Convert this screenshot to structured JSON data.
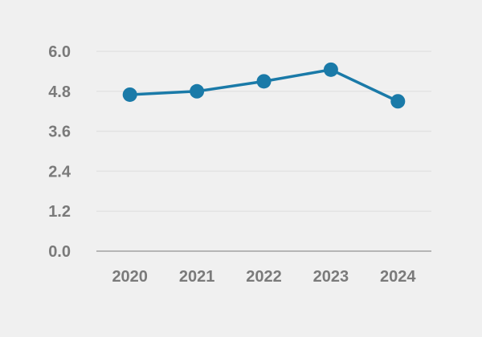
{
  "chart_data": {
    "type": "line",
    "title": "",
    "xlabel": "",
    "ylabel": "",
    "categories": [
      "2020",
      "2021",
      "2022",
      "2023",
      "2024"
    ],
    "series": [
      {
        "values": [
          4.7,
          4.8,
          5.1,
          5.45,
          4.5
        ],
        "color": "#1a7aa8"
      }
    ],
    "ylim": [
      0,
      6.0
    ],
    "yticks": [
      "0.0",
      "1.2",
      "2.4",
      "3.6",
      "4.8",
      "6.0"
    ],
    "grid": true,
    "legend": "none",
    "background": "#f0f0f0"
  }
}
